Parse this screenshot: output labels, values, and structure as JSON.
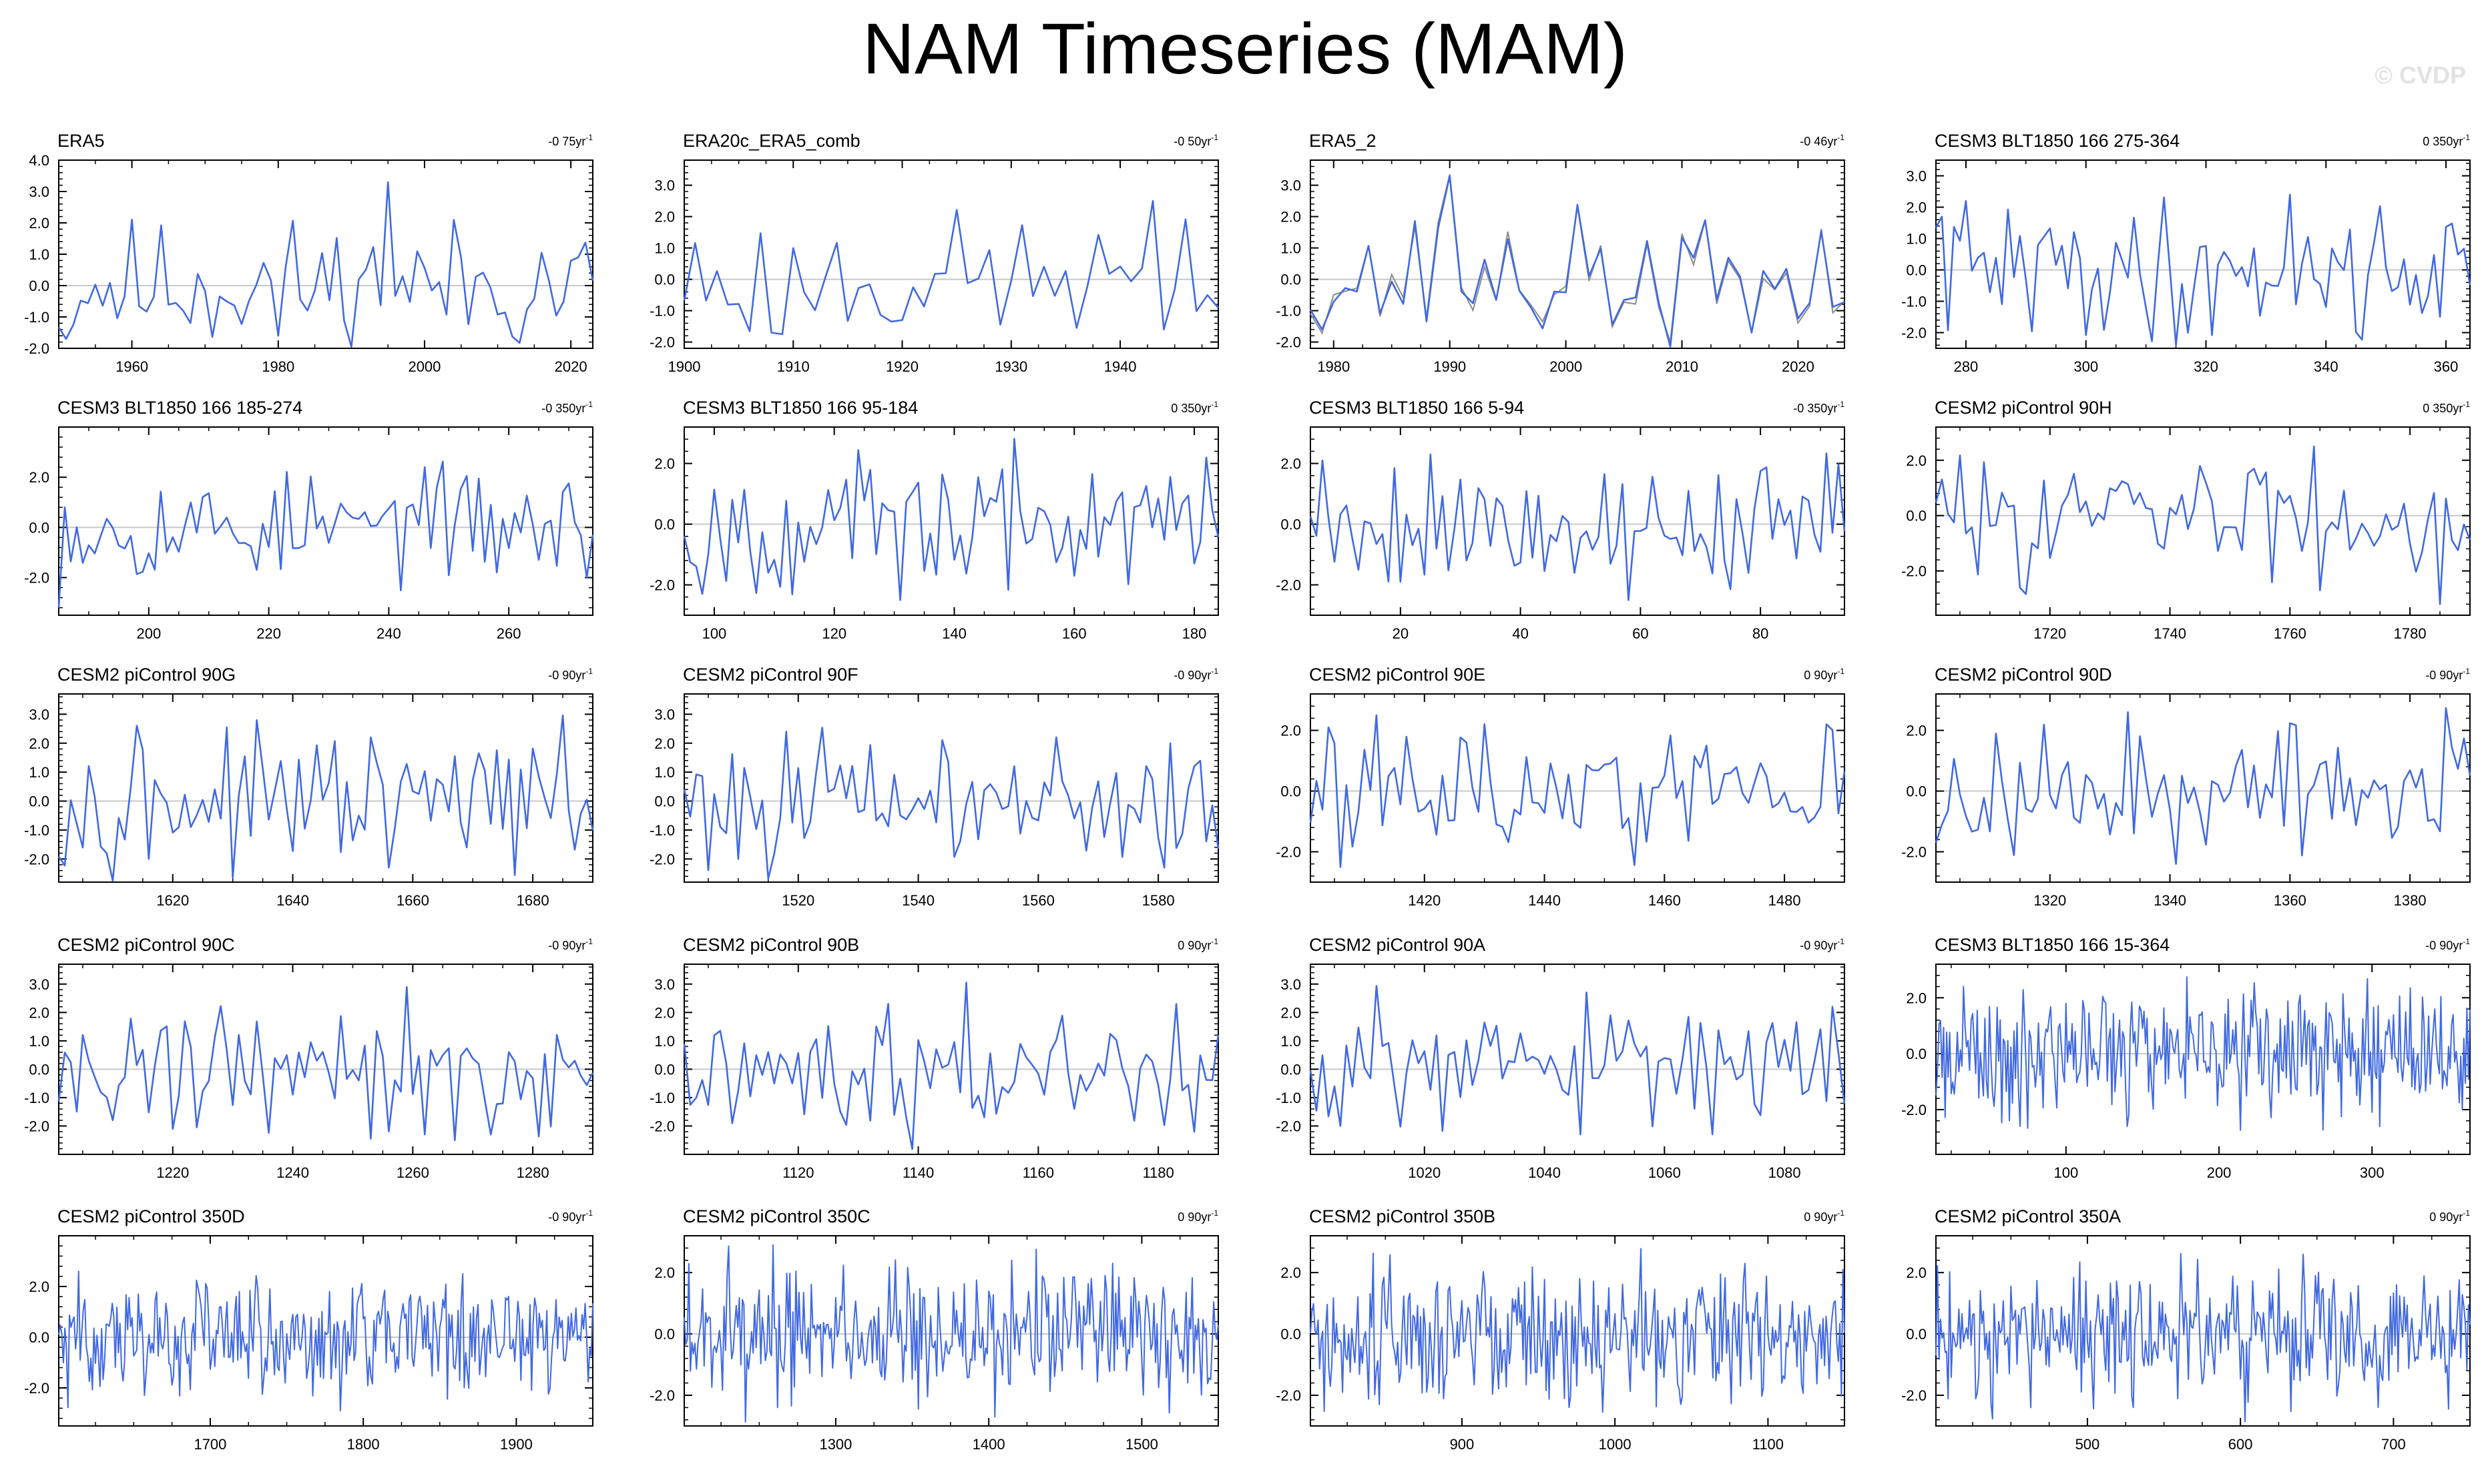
{
  "title": "NAM Timeseries (MAM)",
  "watermark": "© CVDP",
  "colors": {
    "series": "#4169e1",
    "secondary": "#8c8c8c",
    "zero_line": "#c8c8c8",
    "axes": "#000000"
  },
  "chart_data": [
    {
      "type": "line",
      "title": "ERA5",
      "trend": "-0 75yr",
      "xlim": [
        1950,
        2023
      ],
      "ylim": [
        -2.0,
        4.0
      ],
      "yticks": [
        -2.0,
        -1.0,
        0.0,
        1.0,
        2.0,
        3.0,
        4.0
      ],
      "xticks": [
        1960,
        1980,
        2000,
        2020
      ],
      "seed": 11,
      "n": 74,
      "peaks": [
        [
          1995,
          3.3
        ],
        [
          1951,
          -1.7
        ],
        [
          1980,
          -1.6
        ]
      ]
    },
    {
      "type": "line",
      "title": "ERA20c_ERA5_comb",
      "trend": "-0 50yr",
      "xlim": [
        1900,
        1949
      ],
      "ylim": [
        -2.2,
        3.8
      ],
      "yticks": [
        -2.0,
        -1.0,
        0.0,
        1.0,
        2.0,
        3.0
      ],
      "xticks": [
        1900,
        1910,
        1920,
        1930,
        1940
      ],
      "seed": 23,
      "n": 50,
      "peaks": [
        [
          1943,
          2.5
        ],
        [
          1908,
          -1.7
        ],
        [
          1944,
          -1.6
        ]
      ]
    },
    {
      "type": "line",
      "title": "ERA5_2",
      "trend": "-0 46yr",
      "xlim": [
        1978,
        2024
      ],
      "ylim": [
        -2.2,
        3.8
      ],
      "yticks": [
        -2.0,
        -1.0,
        0.0,
        1.0,
        2.0,
        3.0
      ],
      "xticks": [
        1980,
        1990,
        2000,
        2010,
        2020
      ],
      "seed": 37,
      "n": 47,
      "peaks": [
        [
          1990,
          3.3
        ],
        [
          2016,
          -1.7
        ],
        [
          1979,
          -1.6
        ]
      ],
      "has_secondary": true
    },
    {
      "type": "line",
      "title": "CESM3 BLT1850 166 275-364",
      "trend": "0 350yr",
      "xlim": [
        275,
        364
      ],
      "ylim": [
        -2.5,
        3.5
      ],
      "yticks": [
        -2.0,
        -1.0,
        0.0,
        1.0,
        2.0,
        3.0
      ],
      "xticks": [
        280,
        300,
        320,
        340,
        360
      ],
      "seed": 41,
      "n": 90,
      "peaks": [
        [
          334,
          2.4
        ],
        [
          315,
          -2.4
        ],
        [
          276,
          1.7
        ]
      ]
    },
    {
      "type": "line",
      "title": "CESM3 BLT1850 166 185-274",
      "trend": "-0 350yr",
      "xlim": [
        185,
        274
      ],
      "ylim": [
        -3.5,
        4.0
      ],
      "yticks": [
        -2.0,
        0.0,
        2.0
      ],
      "xticks": [
        200,
        220,
        240,
        260
      ],
      "seed": 53,
      "n": 90,
      "peaks": [
        [
          185,
          -3.2
        ],
        [
          246,
          2.4
        ],
        [
          186,
          0.8
        ]
      ]
    },
    {
      "type": "line",
      "title": "CESM3 BLT1850 166 95-184",
      "trend": "0 350yr",
      "xlim": [
        95,
        184
      ],
      "ylim": [
        -3.0,
        3.2
      ],
      "yticks": [
        -2.0,
        0.0,
        2.0
      ],
      "xticks": [
        100,
        120,
        140,
        160,
        180
      ],
      "seed": 67,
      "n": 90,
      "peaks": [
        [
          182,
          2.2
        ],
        [
          131,
          -2.5
        ],
        [
          98,
          -2.3
        ]
      ]
    },
    {
      "type": "line",
      "title": "CESM3 BLT1850 166 5-94",
      "trend": "-0 350yr",
      "xlim": [
        5,
        94
      ],
      "ylim": [
        -3.0,
        3.2
      ],
      "yticks": [
        -2.0,
        0.0,
        2.0
      ],
      "xticks": [
        20,
        40,
        60,
        80
      ],
      "seed": 79,
      "n": 90,
      "peaks": [
        [
          25,
          2.3
        ],
        [
          58,
          -2.5
        ],
        [
          7,
          2.1
        ]
      ]
    },
    {
      "type": "line",
      "title": "CESM2 piControl 90H",
      "trend": "0 350yr",
      "xlim": [
        1701,
        1790
      ],
      "ylim": [
        -3.6,
        3.2
      ],
      "yticks": [
        -2.0,
        0.0,
        2.0
      ],
      "xticks": [
        1720,
        1740,
        1760,
        1780
      ],
      "seed": 83,
      "n": 90,
      "peaks": [
        [
          1764,
          2.5
        ],
        [
          1785,
          -3.2
        ],
        [
          1765,
          -2.7
        ]
      ]
    },
    {
      "type": "line",
      "title": "CESM2 piControl 90G",
      "trend": "-0 90yr",
      "xlim": [
        1601,
        1690
      ],
      "ylim": [
        -2.8,
        3.7
      ],
      "yticks": [
        -2.0,
        -1.0,
        0.0,
        1.0,
        2.0,
        3.0
      ],
      "xticks": [
        1620,
        1640,
        1660,
        1680
      ],
      "seed": 97,
      "n": 90,
      "peaks": [
        [
          1614,
          2.6
        ],
        [
          1656,
          -2.3
        ],
        [
          1616,
          -2.0
        ]
      ]
    },
    {
      "type": "line",
      "title": "CESM2 piControl 90F",
      "trend": "-0 90yr",
      "xlim": [
        1501,
        1590
      ],
      "ylim": [
        -2.8,
        3.7
      ],
      "yticks": [
        -2.0,
        -1.0,
        0.0,
        1.0,
        2.0,
        3.0
      ],
      "xticks": [
        1520,
        1540,
        1560,
        1580
      ],
      "seed": 101,
      "n": 90,
      "peaks": [
        [
          1518,
          2.4
        ],
        [
          1581,
          -2.3
        ],
        [
          1510,
          -2.0
        ]
      ]
    },
    {
      "type": "line",
      "title": "CESM2 piControl 90E",
      "trend": "0 90yr",
      "xlim": [
        1401,
        1490
      ],
      "ylim": [
        -3.0,
        3.2
      ],
      "yticks": [
        -2.0,
        0.0,
        2.0
      ],
      "xticks": [
        1420,
        1440,
        1460,
        1480
      ],
      "seed": 113,
      "n": 90,
      "peaks": [
        [
          1404,
          2.1
        ],
        [
          1406,
          -2.5
        ],
        [
          1487,
          2.2
        ]
      ]
    },
    {
      "type": "line",
      "title": "CESM2 piControl 90D",
      "trend": "-0 90yr",
      "xlim": [
        1301,
        1390
      ],
      "ylim": [
        -3.0,
        3.2
      ],
      "yticks": [
        -2.0,
        0.0,
        2.0
      ],
      "xticks": [
        1320,
        1340,
        1360,
        1380
      ],
      "seed": 127,
      "n": 90,
      "peaks": [
        [
          1333,
          2.6
        ],
        [
          1341,
          -2.4
        ],
        [
          1301,
          -1.7
        ]
      ]
    },
    {
      "type": "line",
      "title": "CESM2 piControl 90C",
      "trend": "-0 90yr",
      "xlim": [
        1201,
        1290
      ],
      "ylim": [
        -3.0,
        3.7
      ],
      "yticks": [
        -2.0,
        -1.0,
        0.0,
        1.0,
        2.0,
        3.0
      ],
      "xticks": [
        1220,
        1240,
        1260,
        1280
      ],
      "seed": 131,
      "n": 90,
      "peaks": [
        [
          1259,
          2.9
        ],
        [
          1273,
          -2.3
        ],
        [
          1262,
          -2.3
        ]
      ]
    },
    {
      "type": "line",
      "title": "CESM2 piControl 90B",
      "trend": "0 90yr",
      "xlim": [
        1101,
        1190
      ],
      "ylim": [
        -3.0,
        3.7
      ],
      "yticks": [
        -2.0,
        -1.0,
        0.0,
        1.0,
        2.0,
        3.0
      ],
      "xticks": [
        1120,
        1140,
        1160,
        1180
      ],
      "seed": 149,
      "n": 90,
      "peaks": [
        [
          1183,
          2.3
        ],
        [
          1186,
          -2.2
        ],
        [
          1109,
          -1.9
        ]
      ]
    },
    {
      "type": "line",
      "title": "CESM2 piControl 90A",
      "trend": "-0 90yr",
      "xlim": [
        1001,
        1090
      ],
      "ylim": [
        -3.0,
        3.7
      ],
      "yticks": [
        -2.0,
        -1.0,
        0.0,
        1.0,
        2.0,
        3.0
      ],
      "xticks": [
        1020,
        1040,
        1060,
        1080
      ],
      "seed": 151,
      "n": 90,
      "peaks": [
        [
          1088,
          2.2
        ],
        [
          1046,
          -2.3
        ],
        [
          1006,
          -2.0
        ]
      ]
    },
    {
      "type": "line",
      "title": "CESM3 BLT1850 166 15-364",
      "trend": "-0 90yr",
      "xlim": [
        15,
        364
      ],
      "ylim": [
        -3.6,
        3.2
      ],
      "yticks": [
        -2.0,
        0.0,
        2.0
      ],
      "xticks": [
        100,
        200,
        300
      ],
      "seed": 163,
      "n": 350,
      "peaks": [
        [
          33,
          2.4
        ],
        [
          140,
          -2.6
        ],
        [
          305,
          -2.6
        ]
      ]
    },
    {
      "type": "line",
      "title": "CESM2 piControl 350D",
      "trend": "-0 90yr",
      "xlim": [
        1601,
        1950
      ],
      "ylim": [
        -3.5,
        4.0
      ],
      "yticks": [
        -2.0,
        0.0,
        2.0
      ],
      "xticks": [
        1700,
        1800,
        1900
      ],
      "seed": 173,
      "n": 350,
      "peaks": [
        [
          1614,
          2.6
        ],
        [
          1785,
          -2.9
        ],
        [
          1865,
          2.5
        ]
      ]
    },
    {
      "type": "line",
      "title": "CESM2 piControl 350C",
      "trend": "0 90yr",
      "xlim": [
        1201,
        1550
      ],
      "ylim": [
        -3.0,
        3.2
      ],
      "yticks": [
        -2.0,
        0.0,
        2.0
      ],
      "xticks": [
        1300,
        1400,
        1500
      ],
      "seed": 181,
      "n": 350,
      "peaks": [
        [
          1259,
          2.9
        ],
        [
          1262,
          -2.4
        ],
        [
          1415,
          2.4
        ]
      ]
    },
    {
      "type": "line",
      "title": "CESM2 piControl 350B",
      "trend": "0 90yr",
      "xlim": [
        801,
        1150
      ],
      "ylim": [
        -3.0,
        3.2
      ],
      "yticks": [
        -2.0,
        0.0,
        2.0
      ],
      "xticks": [
        900,
        1000,
        1100
      ],
      "seed": 191,
      "n": 350,
      "peaks": [
        [
          1085,
          2.3
        ],
        [
          846,
          -2.3
        ],
        [
          1043,
          -2.3
        ]
      ]
    },
    {
      "type": "line",
      "title": "CESM2 piControl 350A",
      "trend": "0 90yr",
      "xlim": [
        401,
        750
      ],
      "ylim": [
        -3.0,
        3.2
      ],
      "yticks": [
        -2.0,
        0.0,
        2.0
      ],
      "xticks": [
        500,
        600,
        700
      ],
      "seed": 197,
      "n": 350,
      "peaks": [
        [
          641,
          2.6
        ],
        [
          530,
          -2.4
        ],
        [
          463,
          -2.4
        ]
      ]
    }
  ]
}
